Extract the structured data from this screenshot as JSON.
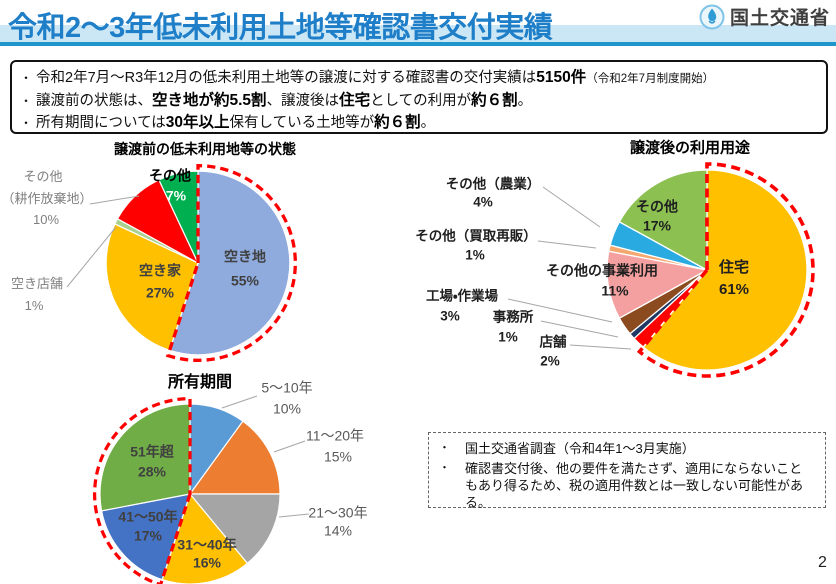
{
  "header": {
    "title": "令和2～3年低未利用土地等確認書交付実績",
    "agency": "国土交通省"
  },
  "summary": {
    "bullet_char": "・",
    "b1_t1": "令和2年7月～R3年12月の低未利用土地等の譲渡に対する確認書の交付実績は",
    "b1_b1": "5150件",
    "b1_note": "（令和2年7月制度開始）",
    "b2_t1": "譲渡前の状態は、",
    "b2_b1": "空き地が約5.5割",
    "b2_t2": "、譲渡後は",
    "b2_b2": "住宅",
    "b2_t3": "としての利用が",
    "b2_b3": "約６割",
    "b2_t4": "。",
    "b3_t1": "所有期間については",
    "b3_b1": "30年以上",
    "b3_t2": "保有している土地等が",
    "b3_b2": "約６割",
    "b3_t3": "。"
  },
  "chart_data": [
    {
      "type": "pie",
      "title": "譲渡前の低未利用地等の状態",
      "highlight": {
        "from_pct": 0,
        "to_pct": 55,
        "color": "#ff0000"
      },
      "slices": [
        {
          "name": "空き地",
          "pct": 55,
          "pct_label": "55%",
          "color": "#8faadc"
        },
        {
          "name": "空き家",
          "pct": 27,
          "pct_label": "27%",
          "color": "#ffc000"
        },
        {
          "name": "空き店舗",
          "pct": 1,
          "pct_label": "1%",
          "color": "#a9d18e"
        },
        {
          "name": "その他（耕作放棄地）",
          "name_l1": "その他",
          "name_l2": "（耕作放棄地）",
          "pct": 10,
          "pct_label": "10%",
          "color": "#ff0000"
        },
        {
          "name": "その他",
          "pct": 7,
          "pct_label": "7%",
          "color": "#00b050"
        }
      ]
    },
    {
      "type": "pie",
      "title": "譲渡後の利用用途",
      "highlight": {
        "from_pct": 0,
        "to_pct": 61,
        "color": "#ff0000"
      },
      "slices": [
        {
          "name": "住宅",
          "pct": 61,
          "pct_label": "61%",
          "color": "#ffc000"
        },
        {
          "name": "店舗",
          "pct": 2,
          "pct_label": "2%",
          "color": "#ff0000"
        },
        {
          "name": "事務所",
          "pct": 1,
          "pct_label": "1%",
          "color": "#1f3864"
        },
        {
          "name": "工場・作業場",
          "pct": 3,
          "pct_label": "3%",
          "color": "#8c4a1f"
        },
        {
          "name": "その他の事業利用",
          "pct": 11,
          "pct_label": "11%",
          "color": "#f5a0a0"
        },
        {
          "name": "その他（買取再販）",
          "pct": 1,
          "pct_label": "1%",
          "color": "#f4a870"
        },
        {
          "name": "その他（農業）",
          "pct": 4,
          "pct_label": "4%",
          "color": "#29abe2"
        },
        {
          "name": "その他",
          "pct": 17,
          "pct_label": "17%",
          "color": "#8cc152"
        }
      ]
    },
    {
      "type": "pie",
      "title": "所有期間",
      "highlight": {
        "from_pct": 55,
        "to_pct": 100,
        "color": "#ff0000"
      },
      "slices": [
        {
          "name": "5～10年",
          "pct": 10,
          "pct_label": "10%",
          "color": "#5b9bd5"
        },
        {
          "name": "11～20年",
          "pct": 15,
          "pct_label": "15%",
          "color": "#ed7d31"
        },
        {
          "name": "21～30年",
          "pct": 14,
          "pct_label": "14%",
          "color": "#a5a5a5"
        },
        {
          "name": "31～40年",
          "pct": 16,
          "pct_label": "16%",
          "color": "#ffc000"
        },
        {
          "name": "41～50年",
          "pct": 17,
          "pct_label": "17%",
          "color": "#4472c4"
        },
        {
          "name": "51年超",
          "pct": 28,
          "pct_label": "28%",
          "color": "#70ad47"
        }
      ]
    }
  ],
  "note": {
    "bullet_char": "・",
    "items": [
      "国土交通省調査（令和4年1～3月実施）",
      "確認書交付後、他の要件を満たさず、適用にならないこともあり得るため、税の適用件数とは一致しない可能性がある。"
    ]
  },
  "page_number": "2"
}
